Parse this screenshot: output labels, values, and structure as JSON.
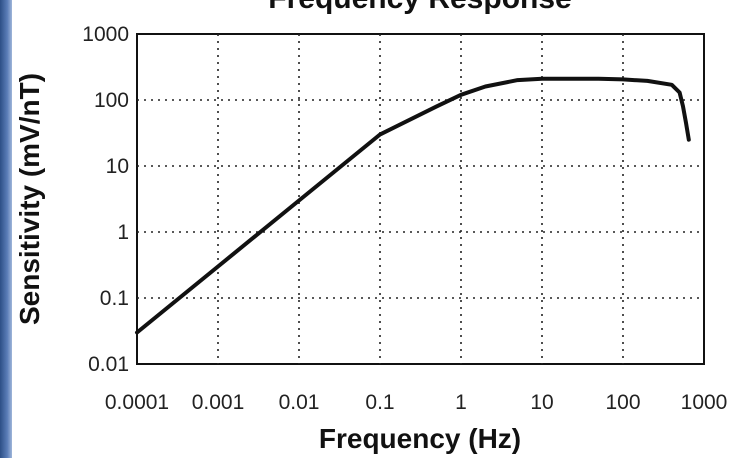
{
  "chart_data": {
    "type": "line",
    "title": "Frequency Response",
    "xlabel": "Frequency (Hz)",
    "ylabel": "Sensitivity (mV/nT)",
    "x_scale": "log",
    "y_scale": "log",
    "xlim": [
      0.0001,
      1000
    ],
    "ylim": [
      0.01,
      1000
    ],
    "grid": true,
    "x_ticks": [
      "0.0001",
      "0.001",
      "0.01",
      "0.1",
      "1",
      "10",
      "100",
      "1000"
    ],
    "y_ticks": [
      "1000",
      "100",
      "10",
      "1",
      "0.1",
      "0.01"
    ],
    "series": [
      {
        "color": "#111111",
        "x": [
          0.0001,
          0.001,
          0.01,
          0.1,
          0.5,
          1,
          2,
          5,
          10,
          50,
          100,
          200,
          400,
          500,
          550,
          600,
          650
        ],
        "y": [
          0.03,
          0.3,
          3,
          30,
          80,
          120,
          160,
          200,
          210,
          210,
          205,
          195,
          170,
          130,
          80,
          45,
          25
        ]
      }
    ]
  }
}
